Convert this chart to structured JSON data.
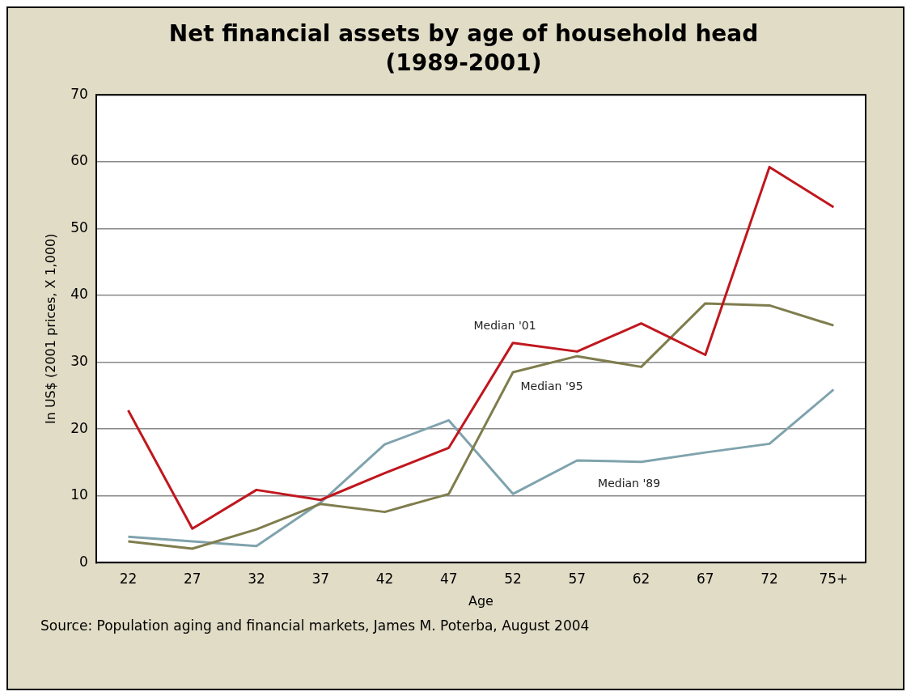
{
  "chart_data": {
    "type": "line",
    "title": "Net financial assets by age of household head\n(1989-2001)",
    "xlabel": "Age",
    "ylabel": "In US$ (2001 prices, X 1,000)",
    "categories": [
      "22",
      "27",
      "32",
      "37",
      "42",
      "47",
      "52",
      "57",
      "62",
      "67",
      "72",
      "75+"
    ],
    "series": [
      {
        "name": "Median '01",
        "color": "#c0171e",
        "values": [
          22.8,
          5.1,
          10.9,
          9.4,
          13.4,
          17.2,
          32.9,
          31.6,
          35.8,
          31.1,
          59.2,
          53.2
        ]
      },
      {
        "name": "Median '95",
        "color": "#7f7d4d",
        "values": [
          3.2,
          2.1,
          5.0,
          8.8,
          7.6,
          10.3,
          28.5,
          30.9,
          29.3,
          38.8,
          38.5,
          35.5
        ]
      },
      {
        "name": "Median '89",
        "color": "#7fa3ad",
        "values": [
          3.9,
          3.2,
          2.5,
          9.0,
          17.7,
          21.3,
          10.3,
          15.3,
          15.1,
          16.5,
          17.8,
          25.9
        ]
      }
    ],
    "ylim": [
      0,
      70
    ],
    "yticks": [
      0,
      10,
      20,
      30,
      40,
      50,
      60,
      70
    ],
    "grid": "y",
    "legend": false,
    "marker": "none",
    "line_style": "solid",
    "annotations": [
      "Source: Population aging and financial markets, James M. Poterba, August 2004"
    ]
  }
}
